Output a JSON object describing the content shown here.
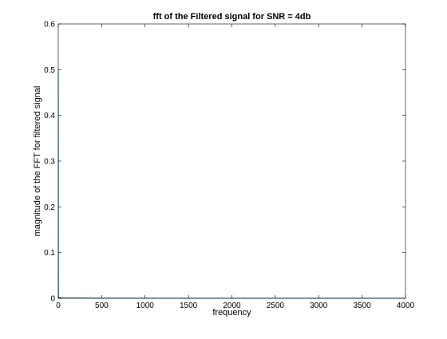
{
  "chart_data": {
    "type": "line",
    "title": "fft of the Filtered signal for SNR = 4db",
    "xlabel": "frequency",
    "ylabel": "magnitude of the FFT for filtered signal",
    "xlim": [
      0,
      4000
    ],
    "ylim": [
      0,
      0.6
    ],
    "xticks": [
      0,
      500,
      1000,
      1500,
      2000,
      2500,
      3000,
      3500,
      4000
    ],
    "xtick_labels": [
      "0",
      "500",
      "1000",
      "1500",
      "2000",
      "2500",
      "3000",
      "3500",
      "4000"
    ],
    "yticks": [
      0,
      0.1,
      0.2,
      0.3,
      0.4,
      0.5,
      0.6
    ],
    "ytick_labels": [
      "0",
      "0.1",
      "0.2",
      "0.3",
      "0.4",
      "0.5",
      "0.6"
    ],
    "grid": false,
    "series": [
      {
        "color": "#0072bd",
        "x": [
          0,
          2,
          4,
          8,
          15,
          30,
          60,
          120,
          250,
          500,
          1000,
          1500,
          2000,
          2500,
          3000,
          3500,
          4000
        ],
        "y": [
          0.5,
          0.002,
          0.001,
          0.002,
          0.001,
          0.002,
          0.001,
          0.001,
          0.001,
          0.0005,
          0.0005,
          0.0003,
          0.0003,
          0.0002,
          0.0002,
          0.0002,
          0.0002
        ]
      }
    ]
  }
}
